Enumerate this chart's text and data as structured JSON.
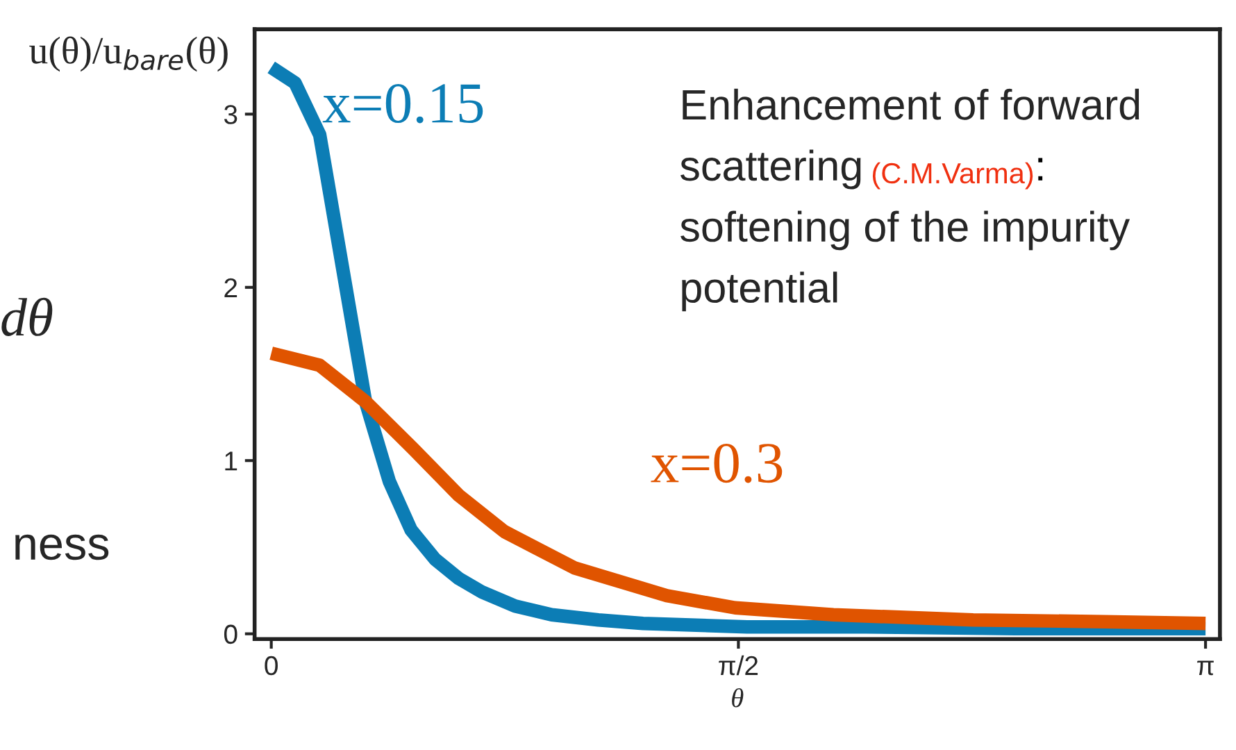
{
  "chart_data": {
    "type": "line",
    "ylabel": "u(θ)/u$_{bare}$(θ)",
    "xlabel": "θ",
    "xlim": [
      -0.056,
      3.19
    ],
    "ylim": [
      -0.03,
      3.49
    ],
    "xticks": [
      {
        "value": 0,
        "label": "0"
      },
      {
        "value": 1.5708,
        "label": "π/2"
      },
      {
        "value": 3.1416,
        "label": "π"
      }
    ],
    "yticks": [
      0,
      1,
      2,
      3
    ],
    "grid": false,
    "legend": false,
    "line_style": "solid",
    "marker": "none",
    "series": [
      {
        "name": "x=0.15",
        "color": "#0c7db5",
        "x": [
          0,
          0.08,
          0.163,
          0.243,
          0.317,
          0.397,
          0.47,
          0.551,
          0.63,
          0.71,
          0.82,
          0.943,
          1.1,
          1.25,
          1.6,
          2.0,
          2.5,
          3.1416
        ],
        "values": [
          3.27,
          3.18,
          2.88,
          2.08,
          1.34,
          0.88,
          0.6,
          0.43,
          0.32,
          0.24,
          0.16,
          0.11,
          0.08,
          0.06,
          0.04,
          0.04,
          0.03,
          0.03
        ]
      },
      {
        "name": "x=0.3",
        "color": "#e05400",
        "x": [
          0,
          0.163,
          0.317,
          0.476,
          0.63,
          0.784,
          1.02,
          1.33,
          1.56,
          1.89,
          2.36,
          2.8,
          3.1416
        ],
        "values": [
          1.62,
          1.55,
          1.34,
          1.07,
          0.8,
          0.59,
          0.38,
          0.22,
          0.15,
          0.11,
          0.08,
          0.07,
          0.06
        ]
      }
    ],
    "annotations": [
      "Enhancement of forward",
      "scattering",
      "(C.M.Varma)",
      ":",
      "softening of the impurity",
      "potential",
      "dθ",
      "ness"
    ]
  }
}
